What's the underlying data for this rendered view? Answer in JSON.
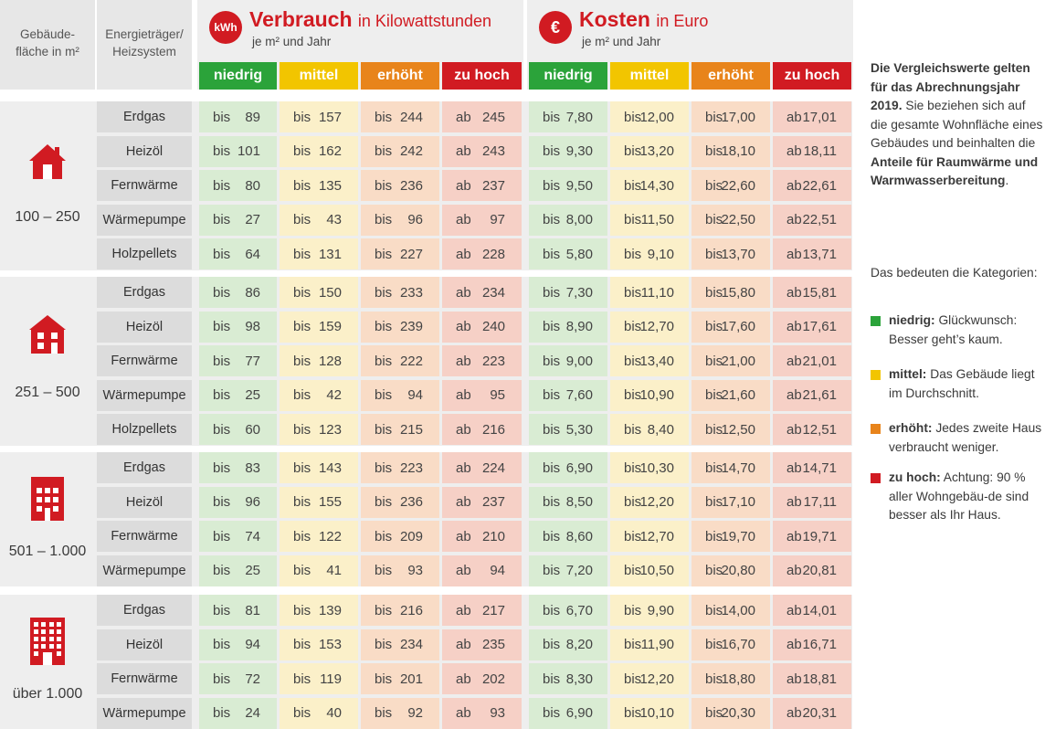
{
  "headers": {
    "area": "Gebäude-\nfläche in m²",
    "energy": "Energieträger/\nHeizsystem"
  },
  "consumption": {
    "icon_text": "kWh",
    "title": "Verbrauch",
    "title_suffix": "in Kilowattstunden",
    "per_unit": "je m² und Jahr"
  },
  "cost": {
    "icon_text": "€",
    "title": "Kosten",
    "title_suffix": "in Euro",
    "per_unit": "je m² und Jahr"
  },
  "categories": [
    "niedrig",
    "mittel",
    "erhöht",
    "zu hoch"
  ],
  "colors": {
    "green": "#2ba33a",
    "yellow": "#f2c500",
    "orange": "#e8841b",
    "red": "#d11b22",
    "cell_green": "#d9ecd3",
    "cell_yellow": "#fbf0c9",
    "cell_orange": "#f9dcc6",
    "cell_red": "#f6d0c6",
    "accent": "#d11b22"
  },
  "prefix_upto": "bis",
  "prefix_from": "ab",
  "groups": [
    {
      "size": "100 – 250",
      "icon": "house-small-icon",
      "rows": [
        {
          "type": "Erdgas",
          "kwh": [
            "89",
            "157",
            "244",
            "245"
          ],
          "eur": [
            "7,80",
            "12,00",
            "17,00",
            "17,01"
          ]
        },
        {
          "type": "Heizöl",
          "kwh": [
            "101",
            "162",
            "242",
            "243"
          ],
          "eur": [
            "9,30",
            "13,20",
            "18,10",
            "18,11"
          ]
        },
        {
          "type": "Fernwärme",
          "kwh": [
            "80",
            "135",
            "236",
            "237"
          ],
          "eur": [
            "9,50",
            "14,30",
            "22,60",
            "22,61"
          ]
        },
        {
          "type": "Wärmepumpe",
          "kwh": [
            "27",
            "43",
            "96",
            "97"
          ],
          "eur": [
            "8,00",
            "11,50",
            "22,50",
            "22,51"
          ]
        },
        {
          "type": "Holzpellets",
          "kwh": [
            "64",
            "131",
            "227",
            "228"
          ],
          "eur": [
            "5,80",
            "9,10",
            "13,70",
            "13,71"
          ]
        }
      ]
    },
    {
      "size": "251 – 500",
      "icon": "house-medium-icon",
      "rows": [
        {
          "type": "Erdgas",
          "kwh": [
            "86",
            "150",
            "233",
            "234"
          ],
          "eur": [
            "7,30",
            "11,10",
            "15,80",
            "15,81"
          ]
        },
        {
          "type": "Heizöl",
          "kwh": [
            "98",
            "159",
            "239",
            "240"
          ],
          "eur": [
            "8,90",
            "12,70",
            "17,60",
            "17,61"
          ]
        },
        {
          "type": "Fernwärme",
          "kwh": [
            "77",
            "128",
            "222",
            "223"
          ],
          "eur": [
            "9,00",
            "13,40",
            "21,00",
            "21,01"
          ]
        },
        {
          "type": "Wärmepumpe",
          "kwh": [
            "25",
            "42",
            "94",
            "95"
          ],
          "eur": [
            "7,60",
            "10,90",
            "21,60",
            "21,61"
          ]
        },
        {
          "type": "Holzpellets",
          "kwh": [
            "60",
            "123",
            "215",
            "216"
          ],
          "eur": [
            "5,30",
            "8,40",
            "12,50",
            "12,51"
          ]
        }
      ]
    },
    {
      "size": "501 – 1.000",
      "icon": "apartment-building-icon",
      "rows": [
        {
          "type": "Erdgas",
          "kwh": [
            "83",
            "143",
            "223",
            "224"
          ],
          "eur": [
            "6,90",
            "10,30",
            "14,70",
            "14,71"
          ]
        },
        {
          "type": "Heizöl",
          "kwh": [
            "96",
            "155",
            "236",
            "237"
          ],
          "eur": [
            "8,50",
            "12,20",
            "17,10",
            "17,11"
          ]
        },
        {
          "type": "Fernwärme",
          "kwh": [
            "74",
            "122",
            "209",
            "210"
          ],
          "eur": [
            "8,60",
            "12,70",
            "19,70",
            "19,71"
          ]
        },
        {
          "type": "Wärmepumpe",
          "kwh": [
            "25",
            "41",
            "93",
            "94"
          ],
          "eur": [
            "7,20",
            "10,50",
            "20,80",
            "20,81"
          ]
        }
      ]
    },
    {
      "size": "über 1.000",
      "icon": "high-rise-building-icon",
      "rows": [
        {
          "type": "Erdgas",
          "kwh": [
            "81",
            "139",
            "216",
            "217"
          ],
          "eur": [
            "6,70",
            "9,90",
            "14,00",
            "14,01"
          ]
        },
        {
          "type": "Heizöl",
          "kwh": [
            "94",
            "153",
            "234",
            "235"
          ],
          "eur": [
            "8,20",
            "11,90",
            "16,70",
            "16,71"
          ]
        },
        {
          "type": "Fernwärme",
          "kwh": [
            "72",
            "119",
            "201",
            "202"
          ],
          "eur": [
            "8,30",
            "12,20",
            "18,80",
            "18,81"
          ]
        },
        {
          "type": "Wärmepumpe",
          "kwh": [
            "24",
            "40",
            "92",
            "93"
          ],
          "eur": [
            "6,90",
            "10,10",
            "20,30",
            "20,31"
          ]
        }
      ]
    }
  ],
  "sidebar": {
    "note_bold": "Die Vergleichswerte gelten für das Abrechnungsjahr 2019.",
    "note_text": "Sie beziehen sich auf die gesamte Wohnfläche eines Gebäudes und beinhalten die",
    "note_bold2": "Anteile für Raumwärme und Warmwasserbereitung",
    "note_end": ".",
    "legend_title": "Das bedeuten die Kategorien:",
    "legend": [
      {
        "label": "niedrig:",
        "text": "Glückwunsch: Besser geht’s kaum.",
        "color": "#2ba33a"
      },
      {
        "label": "mittel:",
        "text": "Das Gebäude liegt im Durchschnitt.",
        "color": "#f2c500"
      },
      {
        "label": "erhöht:",
        "text": "Jedes zweite Haus verbraucht weniger.",
        "color": "#e8841b"
      },
      {
        "label": "zu hoch:",
        "text": "Achtung: 90 % aller Wohngebäu-de sind besser als Ihr Haus.",
        "color": "#d11b22"
      }
    ]
  }
}
